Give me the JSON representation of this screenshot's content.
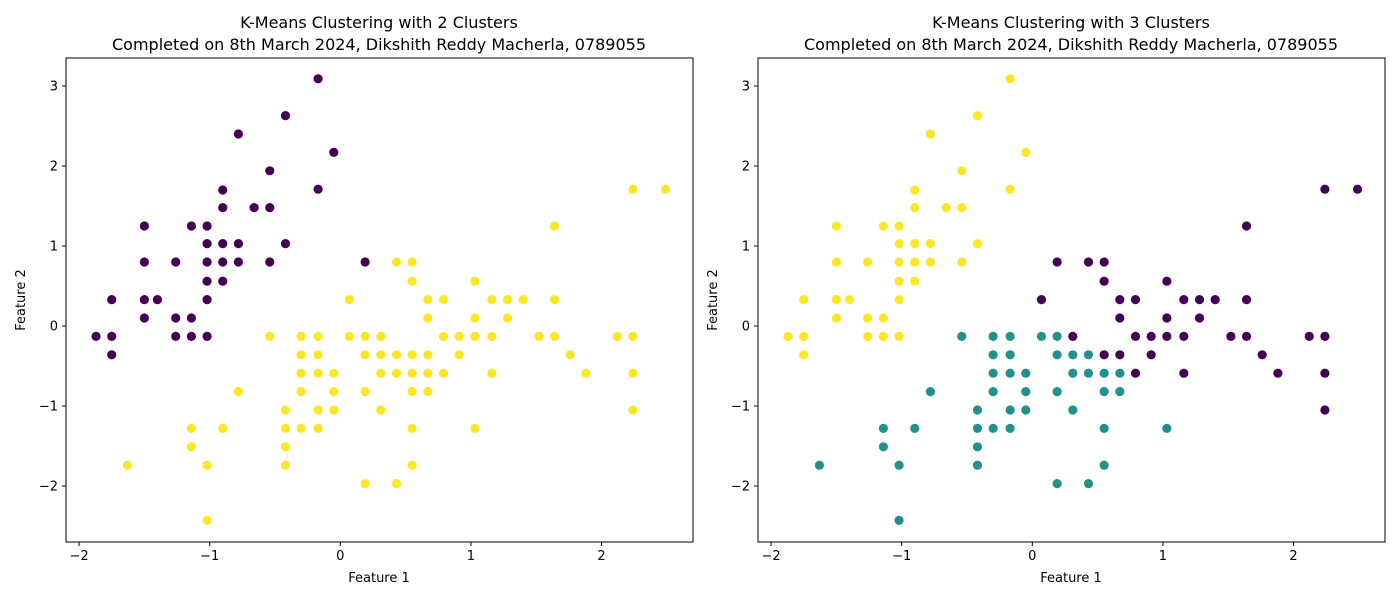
{
  "chart_data": [
    {
      "type": "scatter",
      "title": "K-Means Clustering with 2 Clusters",
      "subtitle": "Completed on 8th March 2024, Dikshith Reddy Macherla, 0789055",
      "xlabel": "Feature 1",
      "ylabel": "Feature 2",
      "xlim": [
        -2.1,
        2.7
      ],
      "ylim": [
        -2.7,
        3.35
      ],
      "xticks": [
        -2,
        -1,
        0,
        1,
        2
      ],
      "yticks": [
        -2,
        -1,
        0,
        1,
        2,
        3
      ],
      "grid": false,
      "cluster_colors": [
        "#440154",
        "#fde725"
      ],
      "series": [
        {
          "values": [
            [
              -1.87,
              -0.13
            ],
            [
              -1.75,
              -0.13
            ],
            [
              -1.75,
              0.33
            ],
            [
              -1.75,
              -0.36
            ],
            [
              -1.5,
              1.25
            ],
            [
              -1.5,
              0.8
            ],
            [
              -1.5,
              0.33
            ],
            [
              -1.5,
              0.1
            ],
            [
              -1.4,
              0.33
            ],
            [
              -1.26,
              0.8
            ],
            [
              -1.26,
              0.1
            ],
            [
              -1.26,
              -0.13
            ],
            [
              -1.14,
              1.25
            ],
            [
              -1.14,
              0.1
            ],
            [
              -1.14,
              -0.13
            ],
            [
              -1.02,
              1.25
            ],
            [
              -1.02,
              1.03
            ],
            [
              -1.02,
              0.8
            ],
            [
              -1.02,
              0.56
            ],
            [
              -1.02,
              0.33
            ],
            [
              -1.02,
              -0.13
            ],
            [
              -0.9,
              1.7
            ],
            [
              -0.9,
              1.48
            ],
            [
              -0.9,
              1.03
            ],
            [
              -0.9,
              0.8
            ],
            [
              -0.9,
              0.56
            ],
            [
              -0.78,
              2.4
            ],
            [
              -0.78,
              1.03
            ],
            [
              -0.78,
              0.8
            ],
            [
              -0.66,
              1.48
            ],
            [
              -0.54,
              1.94
            ],
            [
              -0.54,
              1.48
            ],
            [
              -0.54,
              0.8
            ],
            [
              -0.42,
              2.63
            ],
            [
              -0.42,
              1.03
            ],
            [
              -0.17,
              3.09
            ],
            [
              -0.17,
              1.71
            ],
            [
              -0.05,
              2.17
            ],
            [
              0.19,
              0.8
            ]
          ]
        },
        {
          "values": [
            [
              -1.63,
              -1.74
            ],
            [
              -1.14,
              -1.28
            ],
            [
              -1.14,
              -1.51
            ],
            [
              -1.02,
              -1.74
            ],
            [
              -1.02,
              -2.43
            ],
            [
              -0.9,
              -1.28
            ],
            [
              -0.78,
              -0.82
            ],
            [
              -0.54,
              -0.13
            ],
            [
              -0.42,
              -1.05
            ],
            [
              -0.42,
              -1.28
            ],
            [
              -0.42,
              -1.51
            ],
            [
              -0.42,
              -1.74
            ],
            [
              -0.3,
              -0.13
            ],
            [
              -0.3,
              -0.36
            ],
            [
              -0.3,
              -0.59
            ],
            [
              -0.3,
              -0.82
            ],
            [
              -0.3,
              -1.28
            ],
            [
              -0.17,
              -0.13
            ],
            [
              -0.17,
              -0.36
            ],
            [
              -0.17,
              -0.59
            ],
            [
              -0.17,
              -1.05
            ],
            [
              -0.17,
              -1.28
            ],
            [
              -0.05,
              -0.59
            ],
            [
              -0.05,
              -0.82
            ],
            [
              -0.05,
              -1.05
            ],
            [
              0.07,
              0.33
            ],
            [
              0.07,
              -0.13
            ],
            [
              0.19,
              -0.13
            ],
            [
              0.19,
              -0.36
            ],
            [
              0.19,
              -0.82
            ],
            [
              0.19,
              -1.97
            ],
            [
              0.31,
              -0.13
            ],
            [
              0.31,
              -0.36
            ],
            [
              0.31,
              -0.59
            ],
            [
              0.31,
              -1.05
            ],
            [
              0.43,
              0.8
            ],
            [
              0.43,
              -0.36
            ],
            [
              0.43,
              -0.59
            ],
            [
              0.43,
              -1.97
            ],
            [
              0.55,
              0.8
            ],
            [
              0.55,
              0.56
            ],
            [
              0.55,
              -0.36
            ],
            [
              0.55,
              -0.59
            ],
            [
              0.55,
              -0.82
            ],
            [
              0.55,
              -1.28
            ],
            [
              0.55,
              -1.74
            ],
            [
              0.67,
              0.33
            ],
            [
              0.67,
              0.1
            ],
            [
              0.67,
              -0.36
            ],
            [
              0.67,
              -0.59
            ],
            [
              0.67,
              -0.82
            ],
            [
              0.79,
              0.33
            ],
            [
              0.79,
              -0.13
            ],
            [
              0.79,
              -0.59
            ],
            [
              0.91,
              -0.13
            ],
            [
              0.91,
              -0.36
            ],
            [
              1.03,
              0.56
            ],
            [
              1.03,
              0.1
            ],
            [
              1.03,
              -0.13
            ],
            [
              1.03,
              -1.28
            ],
            [
              1.16,
              0.33
            ],
            [
              1.16,
              -0.13
            ],
            [
              1.16,
              -0.59
            ],
            [
              1.28,
              0.33
            ],
            [
              1.28,
              0.1
            ],
            [
              1.4,
              0.33
            ],
            [
              1.52,
              -0.13
            ],
            [
              1.64,
              1.25
            ],
            [
              1.64,
              0.33
            ],
            [
              1.64,
              -0.13
            ],
            [
              1.76,
              -0.36
            ],
            [
              1.88,
              -0.59
            ],
            [
              2.12,
              -0.13
            ],
            [
              2.24,
              1.71
            ],
            [
              2.24,
              -0.13
            ],
            [
              2.24,
              -0.59
            ],
            [
              2.24,
              -1.05
            ],
            [
              2.49,
              1.71
            ]
          ]
        }
      ]
    },
    {
      "type": "scatter",
      "title": "K-Means Clustering with 3 Clusters",
      "subtitle": "Completed on 8th March 2024, Dikshith Reddy Macherla, 0789055",
      "xlabel": "Feature 1",
      "ylabel": "Feature 2",
      "xlim": [
        -2.1,
        2.7
      ],
      "ylim": [
        -2.7,
        3.35
      ],
      "xticks": [
        -2,
        -1,
        0,
        1,
        2
      ],
      "yticks": [
        -2,
        -1,
        0,
        1,
        2,
        3
      ],
      "grid": false,
      "cluster_colors": [
        "#440154",
        "#21918c",
        "#fde725"
      ],
      "series": [
        {
          "values": [
            [
              0.07,
              0.33
            ],
            [
              0.19,
              0.8
            ],
            [
              0.31,
              -0.13
            ],
            [
              0.43,
              0.8
            ],
            [
              0.55,
              0.8
            ],
            [
              0.55,
              0.56
            ],
            [
              0.55,
              -0.36
            ],
            [
              0.67,
              0.33
            ],
            [
              0.67,
              0.1
            ],
            [
              0.67,
              -0.36
            ],
            [
              0.79,
              0.33
            ],
            [
              0.79,
              -0.13
            ],
            [
              0.79,
              -0.59
            ],
            [
              0.91,
              -0.13
            ],
            [
              0.91,
              -0.36
            ],
            [
              1.03,
              0.56
            ],
            [
              1.03,
              0.1
            ],
            [
              1.03,
              -0.13
            ],
            [
              1.16,
              0.33
            ],
            [
              1.16,
              -0.13
            ],
            [
              1.16,
              -0.59
            ],
            [
              1.28,
              0.33
            ],
            [
              1.28,
              0.1
            ],
            [
              1.4,
              0.33
            ],
            [
              1.52,
              -0.13
            ],
            [
              1.64,
              1.25
            ],
            [
              1.64,
              0.33
            ],
            [
              1.64,
              -0.13
            ],
            [
              1.76,
              -0.36
            ],
            [
              1.88,
              -0.59
            ],
            [
              2.12,
              -0.13
            ],
            [
              2.24,
              1.71
            ],
            [
              2.24,
              -0.13
            ],
            [
              2.24,
              -0.59
            ],
            [
              2.24,
              -1.05
            ],
            [
              2.49,
              1.71
            ]
          ]
        },
        {
          "values": [
            [
              -1.63,
              -1.74
            ],
            [
              -1.14,
              -1.28
            ],
            [
              -1.14,
              -1.51
            ],
            [
              -1.02,
              -1.74
            ],
            [
              -1.02,
              -2.43
            ],
            [
              -0.9,
              -1.28
            ],
            [
              -0.78,
              -0.82
            ],
            [
              -0.54,
              -0.13
            ],
            [
              -0.42,
              -1.05
            ],
            [
              -0.42,
              -1.28
            ],
            [
              -0.42,
              -1.51
            ],
            [
              -0.42,
              -1.74
            ],
            [
              -0.3,
              -0.13
            ],
            [
              -0.3,
              -0.36
            ],
            [
              -0.3,
              -0.59
            ],
            [
              -0.3,
              -0.82
            ],
            [
              -0.3,
              -1.28
            ],
            [
              -0.17,
              -0.13
            ],
            [
              -0.17,
              -0.36
            ],
            [
              -0.17,
              -0.59
            ],
            [
              -0.17,
              -1.05
            ],
            [
              -0.17,
              -1.28
            ],
            [
              -0.05,
              -0.59
            ],
            [
              -0.05,
              -0.82
            ],
            [
              -0.05,
              -1.05
            ],
            [
              0.07,
              -0.13
            ],
            [
              0.19,
              -0.13
            ],
            [
              0.19,
              -0.36
            ],
            [
              0.19,
              -0.82
            ],
            [
              0.19,
              -1.97
            ],
            [
              0.31,
              -0.36
            ],
            [
              0.31,
              -0.59
            ],
            [
              0.31,
              -1.05
            ],
            [
              0.43,
              -0.36
            ],
            [
              0.43,
              -0.59
            ],
            [
              0.43,
              -1.97
            ],
            [
              0.55,
              -0.59
            ],
            [
              0.55,
              -0.82
            ],
            [
              0.55,
              -1.28
            ],
            [
              0.55,
              -1.74
            ],
            [
              0.67,
              -0.59
            ],
            [
              0.67,
              -0.82
            ],
            [
              1.03,
              -1.28
            ]
          ]
        },
        {
          "values": [
            [
              -1.87,
              -0.13
            ],
            [
              -1.75,
              -0.13
            ],
            [
              -1.75,
              0.33
            ],
            [
              -1.75,
              -0.36
            ],
            [
              -1.5,
              1.25
            ],
            [
              -1.5,
              0.8
            ],
            [
              -1.5,
              0.33
            ],
            [
              -1.5,
              0.1
            ],
            [
              -1.4,
              0.33
            ],
            [
              -1.26,
              0.8
            ],
            [
              -1.26,
              0.1
            ],
            [
              -1.26,
              -0.13
            ],
            [
              -1.14,
              1.25
            ],
            [
              -1.14,
              0.1
            ],
            [
              -1.14,
              -0.13
            ],
            [
              -1.02,
              1.25
            ],
            [
              -1.02,
              1.03
            ],
            [
              -1.02,
              0.8
            ],
            [
              -1.02,
              0.56
            ],
            [
              -1.02,
              0.33
            ],
            [
              -1.02,
              -0.13
            ],
            [
              -0.9,
              1.7
            ],
            [
              -0.9,
              1.48
            ],
            [
              -0.9,
              1.03
            ],
            [
              -0.9,
              0.8
            ],
            [
              -0.9,
              0.56
            ],
            [
              -0.78,
              2.4
            ],
            [
              -0.78,
              1.03
            ],
            [
              -0.78,
              0.8
            ],
            [
              -0.66,
              1.48
            ],
            [
              -0.54,
              1.94
            ],
            [
              -0.54,
              1.48
            ],
            [
              -0.54,
              0.8
            ],
            [
              -0.42,
              2.63
            ],
            [
              -0.42,
              1.03
            ],
            [
              -0.17,
              3.09
            ],
            [
              -0.17,
              1.71
            ],
            [
              -0.05,
              2.17
            ]
          ]
        }
      ]
    }
  ]
}
